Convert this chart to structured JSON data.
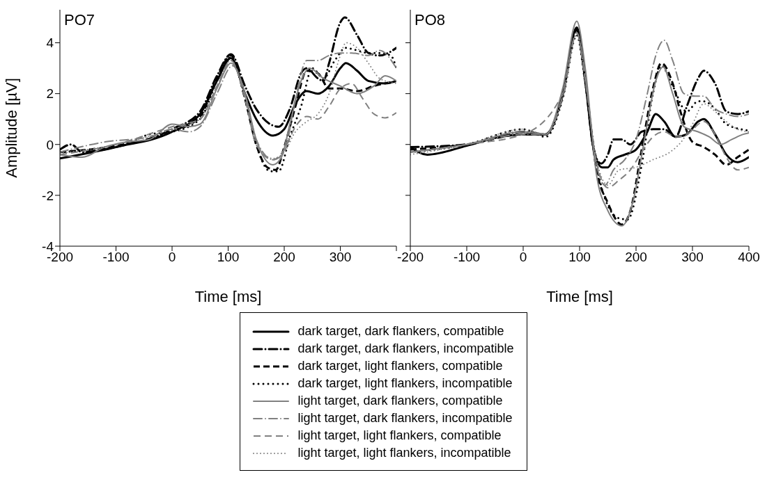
{
  "chart_data": [
    {
      "type": "line",
      "title": "PO7",
      "xlabel": "Time [ms]",
      "ylabel": "Amplitude [µV]",
      "xlim": [
        -200,
        400
      ],
      "xticks": [
        -200,
        -100,
        0,
        100,
        200,
        300,
        {
          "value": 400,
          "label": null
        }
      ],
      "ylim": [
        -4,
        5.3
      ],
      "yticks": [
        -4,
        -2,
        0,
        2,
        4
      ],
      "legend": "bottom",
      "series": [
        {
          "name": "dark target, dark flankers, compatible",
          "color": "#000000",
          "line_style": "solid",
          "x": [
            -200,
            -100,
            0,
            50,
            80,
            105,
            130,
            150,
            180,
            200,
            220,
            240,
            260,
            280,
            300,
            310,
            330,
            350,
            380,
            400
          ],
          "values": [
            -0.55,
            -0.1,
            0.5,
            1.2,
            2.5,
            3.4,
            2.0,
            1.0,
            0.35,
            0.6,
            1.6,
            2.1,
            2.0,
            2.3,
            3.0,
            3.2,
            2.9,
            2.5,
            2.4,
            2.5
          ]
        },
        {
          "name": "dark target, dark flankers, incompatible",
          "color": "#000000",
          "line_style": "dashdot",
          "x": [
            -200,
            -180,
            -160,
            -100,
            0,
            50,
            80,
            105,
            130,
            150,
            190,
            210,
            230,
            240,
            260,
            270,
            280,
            300,
            308,
            330,
            350,
            370,
            400
          ],
          "values": [
            -0.2,
            0.0,
            -0.3,
            -0.1,
            0.6,
            1.3,
            2.7,
            3.55,
            2.3,
            1.4,
            0.7,
            1.4,
            2.8,
            3.0,
            2.6,
            2.5,
            3.2,
            4.8,
            5.0,
            4.3,
            3.6,
            3.5,
            3.8
          ]
        },
        {
          "name": "dark target, light flankers, compatible",
          "color": "#000000",
          "line_style": "dashed",
          "x": [
            -200,
            -100,
            0,
            50,
            80,
            105,
            130,
            150,
            170,
            185,
            200,
            220,
            240,
            260,
            280,
            300,
            330,
            360,
            400
          ],
          "values": [
            -0.3,
            -0.05,
            0.5,
            1.1,
            2.6,
            3.5,
            1.8,
            0.0,
            -0.9,
            -1.0,
            -0.1,
            1.5,
            2.9,
            2.8,
            2.2,
            2.2,
            2.1,
            2.3,
            2.5
          ]
        },
        {
          "name": "dark target, light flankers, incompatible",
          "color": "#000000",
          "line_style": "dotted",
          "x": [
            -200,
            -100,
            -40,
            0,
            50,
            80,
            105,
            130,
            150,
            175,
            190,
            210,
            230,
            250,
            270,
            290,
            310,
            330,
            350,
            370,
            390,
            400
          ],
          "values": [
            -0.3,
            -0.1,
            0.4,
            0.5,
            1.0,
            2.5,
            3.45,
            1.8,
            0.0,
            -1.05,
            -1.05,
            0.3,
            1.5,
            3.0,
            2.6,
            3.3,
            3.8,
            3.7,
            3.6,
            3.6,
            3.5,
            3.0
          ]
        },
        {
          "name": "light target, dark flankers, compatible",
          "color": "#808080",
          "line_style": "solid",
          "x": [
            -200,
            -160,
            -120,
            -80,
            -40,
            0,
            30,
            50,
            80,
            105,
            130,
            150,
            180,
            195,
            210,
            230,
            245,
            270,
            300,
            330,
            360,
            380,
            400
          ],
          "values": [
            -0.4,
            -0.5,
            -0.1,
            0.1,
            0.2,
            0.8,
            0.7,
            0.8,
            2.2,
            3.2,
            2.0,
            0.2,
            -0.8,
            -0.5,
            0.8,
            2.5,
            3.0,
            2.6,
            2.3,
            2.0,
            2.3,
            2.7,
            2.5
          ]
        },
        {
          "name": "light target, dark flankers, incompatible",
          "color": "#808080",
          "line_style": "dashdot",
          "x": [
            -200,
            -120,
            -40,
            0,
            30,
            50,
            80,
            108,
            130,
            150,
            180,
            200,
            220,
            240,
            260,
            280,
            300,
            320,
            350,
            370,
            400
          ],
          "values": [
            -0.3,
            0.1,
            0.3,
            0.6,
            0.5,
            0.7,
            2.0,
            3.1,
            2.0,
            0.2,
            -0.6,
            -0.3,
            1.8,
            3.3,
            3.3,
            3.5,
            3.6,
            3.6,
            3.5,
            3.7,
            3.0
          ]
        },
        {
          "name": "light target, light flankers, compatible",
          "color": "#808080",
          "line_style": "dashed",
          "x": [
            -200,
            -100,
            0,
            50,
            80,
            105,
            130,
            150,
            180,
            200,
            220,
            240,
            260,
            280,
            300,
            320,
            340,
            360,
            380,
            400
          ],
          "values": [
            -0.4,
            0.0,
            0.7,
            1.0,
            2.3,
            3.3,
            1.8,
            0.0,
            -0.6,
            -0.2,
            0.7,
            1.1,
            1.0,
            1.5,
            2.2,
            2.4,
            1.8,
            1.2,
            1.05,
            1.25
          ]
        },
        {
          "name": "light target, light flankers, incompatible",
          "color": "#808080",
          "line_style": "dotted",
          "x": [
            -200,
            -100,
            0,
            50,
            80,
            105,
            130,
            150,
            180,
            200,
            220,
            240,
            260,
            280,
            300,
            310,
            330,
            350,
            370,
            400
          ],
          "values": [
            -0.35,
            0.0,
            0.6,
            1.0,
            2.3,
            3.3,
            1.9,
            0.1,
            -0.55,
            -0.3,
            0.5,
            0.9,
            1.2,
            2.0,
            3.5,
            4.0,
            3.8,
            3.2,
            2.6,
            2.4
          ]
        }
      ]
    },
    {
      "type": "line",
      "title": "PO8",
      "xlabel": "Time [ms]",
      "xlim": [
        -200,
        400
      ],
      "xticks": [
        -200,
        -100,
        0,
        100,
        200,
        300,
        400
      ],
      "ylim": [
        -4,
        5.3
      ],
      "yticks": [
        -4,
        -2,
        0,
        2,
        4
      ],
      "tick_labels": "x",
      "series": [
        {
          "color": "#000000",
          "line_style": "solid",
          "x": [
            -200,
            -170,
            -100,
            -40,
            0,
            40,
            70,
            95,
            110,
            125,
            140,
            150,
            160,
            180,
            200,
            220,
            235,
            250,
            270,
            290,
            310,
            320,
            340,
            360,
            380,
            400
          ],
          "values": [
            -0.1,
            -0.4,
            -0.05,
            0.3,
            0.4,
            0.4,
            2.0,
            4.6,
            2.5,
            -0.2,
            -0.9,
            -0.9,
            -0.6,
            -0.4,
            -0.2,
            0.5,
            1.2,
            0.9,
            0.3,
            0.4,
            0.9,
            1.0,
            0.4,
            -0.4,
            -0.7,
            -0.5
          ]
        },
        {
          "color": "#000000",
          "line_style": "dashdot",
          "x": [
            -200,
            -100,
            0,
            40,
            70,
            95,
            110,
            125,
            138,
            150,
            160,
            175,
            190,
            210,
            230,
            250,
            270,
            290,
            310,
            320,
            340,
            360,
            380,
            400
          ],
          "values": [
            -0.1,
            0.0,
            0.5,
            0.4,
            1.9,
            4.5,
            2.5,
            -0.2,
            -0.75,
            -0.4,
            0.2,
            0.2,
            0.0,
            0.5,
            0.6,
            0.6,
            0.3,
            1.5,
            2.6,
            2.9,
            2.4,
            1.3,
            1.2,
            1.3
          ]
        },
        {
          "color": "#000000",
          "line_style": "dashed",
          "x": [
            -200,
            -100,
            0,
            40,
            70,
            95,
            110,
            130,
            150,
            175,
            190,
            210,
            230,
            245,
            265,
            280,
            300,
            320,
            340,
            360,
            380,
            400
          ],
          "values": [
            -0.2,
            0.0,
            0.4,
            0.4,
            2.0,
            4.55,
            2.5,
            -1.0,
            -2.3,
            -3.15,
            -2.6,
            -0.2,
            2.2,
            3.2,
            2.4,
            1.2,
            0.1,
            -0.1,
            -0.4,
            -0.8,
            -0.5,
            -0.2
          ]
        },
        {
          "color": "#000000",
          "line_style": "dotted",
          "x": [
            -200,
            -100,
            0,
            40,
            70,
            95,
            110,
            130,
            150,
            170,
            185,
            210,
            230,
            245,
            265,
            290,
            310,
            320,
            340,
            360,
            400
          ],
          "values": [
            -0.3,
            0.0,
            0.6,
            0.3,
            1.8,
            4.3,
            2.4,
            -0.8,
            -2.4,
            -2.9,
            -2.95,
            -0.8,
            2.0,
            3.1,
            2.3,
            1.3,
            1.7,
            1.7,
            1.4,
            0.8,
            0.55
          ]
        },
        {
          "color": "#808080",
          "line_style": "solid",
          "x": [
            -200,
            -100,
            0,
            40,
            70,
            95,
            110,
            130,
            150,
            175,
            195,
            215,
            235,
            248,
            265,
            285,
            310,
            330,
            350,
            370,
            390,
            400
          ],
          "values": [
            -0.3,
            0.0,
            0.5,
            0.4,
            2.2,
            4.85,
            3.0,
            -1.2,
            -2.6,
            -3.2,
            -2.2,
            0.2,
            2.5,
            3.05,
            2.0,
            0.7,
            0.5,
            0.3,
            0.0,
            0.2,
            0.4,
            0.45
          ]
        },
        {
          "color": "#808080",
          "line_style": "dashdot",
          "x": [
            -200,
            -100,
            0,
            40,
            70,
            95,
            110,
            130,
            145,
            160,
            180,
            200,
            220,
            235,
            250,
            265,
            285,
            305,
            320,
            340,
            360,
            380,
            400
          ],
          "values": [
            -0.3,
            0.0,
            0.4,
            0.4,
            1.9,
            4.4,
            2.6,
            -0.8,
            -1.6,
            -1.0,
            -0.6,
            0.2,
            2.0,
            3.5,
            4.1,
            3.3,
            2.0,
            1.9,
            1.9,
            1.4,
            1.2,
            1.1,
            1.2
          ]
        },
        {
          "color": "#808080",
          "line_style": "dashed",
          "x": [
            -200,
            -100,
            0,
            70,
            95,
            110,
            130,
            150,
            170,
            190,
            210,
            230,
            250,
            270,
            290,
            320,
            340,
            360,
            380,
            400
          ],
          "values": [
            -0.3,
            0.0,
            0.4,
            2.0,
            4.4,
            2.5,
            -0.7,
            -1.7,
            -1.4,
            -1.0,
            -0.3,
            0.3,
            0.5,
            0.3,
            0.4,
            0.9,
            0.4,
            -0.5,
            -1.0,
            -0.9
          ]
        },
        {
          "color": "#808080",
          "line_style": "dotted",
          "x": [
            -200,
            -100,
            0,
            40,
            70,
            95,
            110,
            130,
            150,
            170,
            200,
            230,
            260,
            280,
            300,
            320,
            340,
            360,
            380,
            400
          ],
          "values": [
            -0.4,
            0.0,
            0.6,
            0.4,
            1.8,
            4.3,
            2.6,
            -0.6,
            -1.6,
            -1.0,
            -0.9,
            -0.6,
            -0.3,
            0.1,
            0.8,
            1.6,
            1.3,
            0.9,
            0.6,
            0.5
          ]
        }
      ]
    }
  ]
}
